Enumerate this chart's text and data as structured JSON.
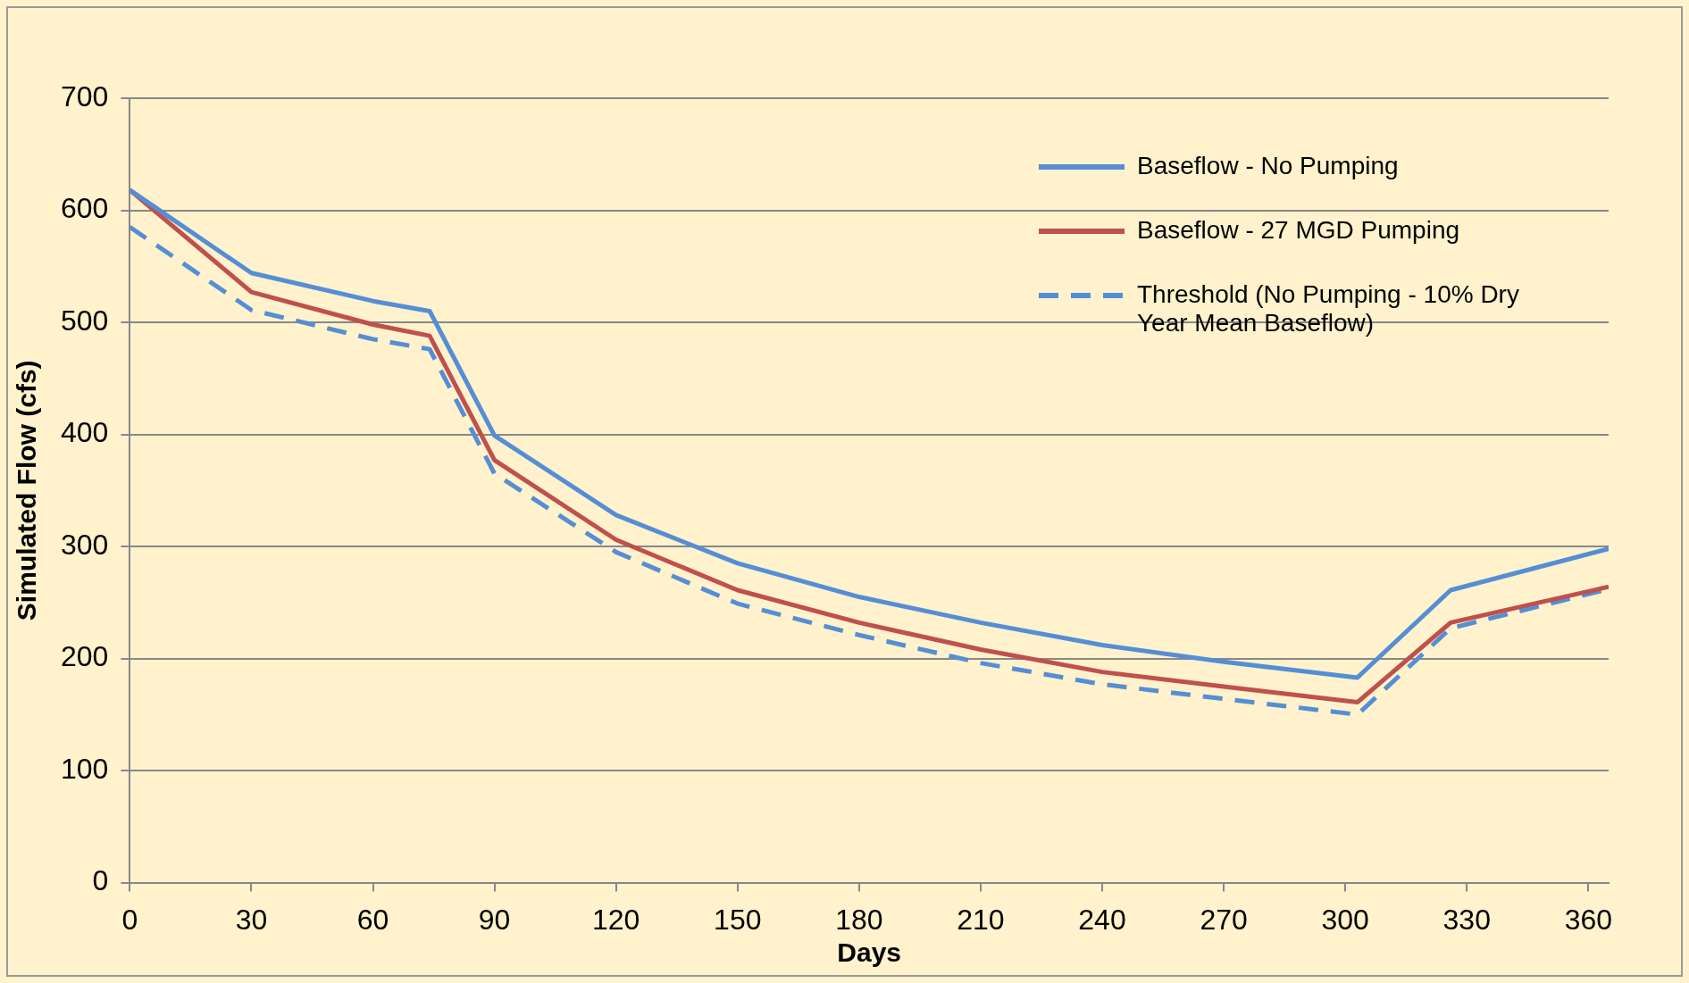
{
  "chart_data": {
    "type": "line",
    "xlabel": "Days",
    "ylabel": "Simulated Flow (cfs)",
    "xlim": [
      0,
      365
    ],
    "xticks": [
      0,
      30,
      60,
      90,
      120,
      150,
      180,
      210,
      240,
      270,
      300,
      330,
      360
    ],
    "ylim": [
      0,
      700
    ],
    "yticks": [
      0,
      100,
      200,
      300,
      400,
      500,
      600,
      700
    ],
    "grid": "y",
    "legend": "top right",
    "marker": "none",
    "series": [
      {
        "name": "Baseflow - No Pumping",
        "color": "#558ed5",
        "line_style": "solid",
        "x": [
          0,
          30,
          60,
          74,
          90,
          120,
          150,
          180,
          210,
          240,
          270,
          303,
          326,
          365
        ],
        "values": [
          618,
          544,
          519,
          510,
          399,
          328,
          285,
          255,
          232,
          212,
          197,
          183,
          261,
          298
        ]
      },
      {
        "name": "Baseflow - 27 MGD Pumping",
        "color": "#c0504d",
        "line_style": "solid",
        "x": [
          0,
          30,
          60,
          74,
          90,
          120,
          150,
          180,
          210,
          240,
          270,
          303,
          326,
          365
        ],
        "values": [
          618,
          527,
          498,
          488,
          377,
          306,
          261,
          232,
          208,
          188,
          175,
          161,
          232,
          264
        ]
      },
      {
        "name": "Threshold (No Pumping  - 10% Dry Year Mean Baseflow)",
        "color": "#558ed5",
        "line_style": "dashed",
        "x": [
          0,
          30,
          60,
          74,
          90,
          120,
          150,
          180,
          210,
          240,
          270,
          303,
          326,
          365
        ],
        "values": [
          585,
          511,
          485,
          476,
          365,
          295,
          249,
          221,
          196,
          177,
          164,
          150,
          227,
          262
        ]
      }
    ]
  }
}
